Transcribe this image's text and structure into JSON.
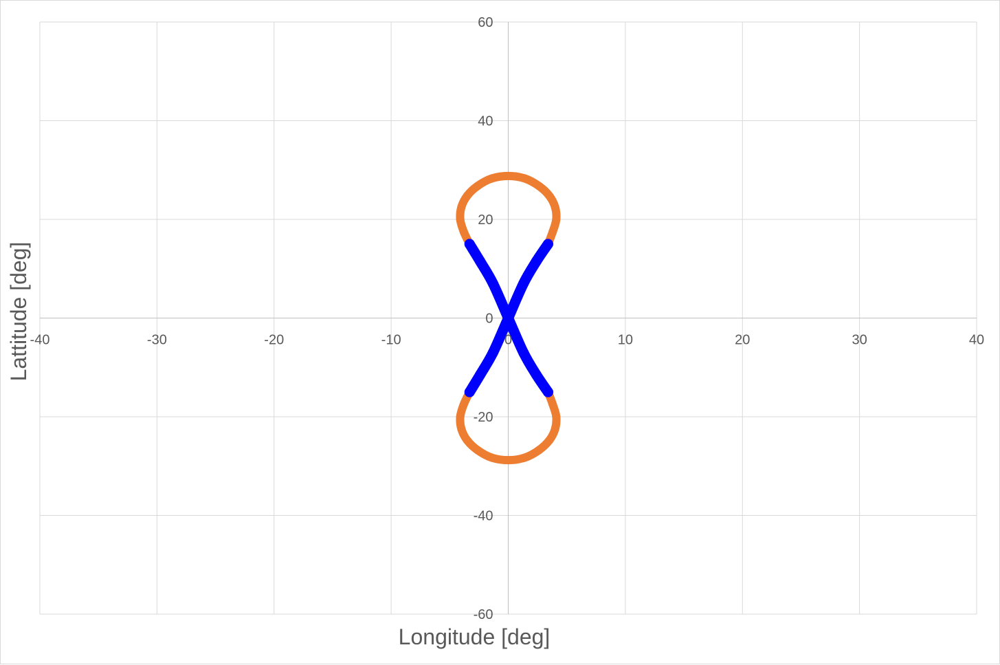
{
  "chart_data": {
    "type": "scatter",
    "title": "",
    "xlabel": "Longitude [deg]",
    "ylabel": "Lattitude [deg]",
    "xlim": [
      -40,
      40
    ],
    "ylim": [
      -60,
      60
    ],
    "x_ticks": [
      -40,
      -30,
      -20,
      -10,
      0,
      10,
      20,
      30,
      40
    ],
    "y_ticks": [
      -60,
      -40,
      -20,
      0,
      20,
      40,
      60
    ],
    "x_tick_labels": [
      "-40",
      "-30",
      "-20",
      "-10",
      "0",
      "10",
      "20",
      "30",
      "40"
    ],
    "y_tick_labels": [
      "-60",
      "-40",
      "-20",
      "0",
      "20",
      "40",
      "60"
    ],
    "grid": true,
    "legend": "none",
    "series": [
      {
        "color": "#ed7d31",
        "segments": [
          [
            [
              -3.3,
              15.0
            ],
            [
              -3.8,
              17.5
            ],
            [
              -4.1,
              20.0
            ],
            [
              -4.0,
              22.5
            ],
            [
              -3.5,
              24.8
            ],
            [
              -2.6,
              26.8
            ],
            [
              -1.4,
              28.3
            ],
            [
              0.0,
              28.8
            ],
            [
              1.4,
              28.3
            ],
            [
              2.6,
              26.8
            ],
            [
              3.5,
              24.8
            ],
            [
              4.0,
              22.5
            ],
            [
              4.1,
              20.0
            ],
            [
              3.8,
              17.5
            ],
            [
              3.4,
              15.0
            ]
          ],
          [
            [
              -3.3,
              -15.0
            ],
            [
              -3.8,
              -17.5
            ],
            [
              -4.1,
              -20.0
            ],
            [
              -4.0,
              -22.5
            ],
            [
              -3.5,
              -24.8
            ],
            [
              -2.6,
              -26.8
            ],
            [
              -1.4,
              -28.3
            ],
            [
              0.0,
              -28.8
            ],
            [
              1.4,
              -28.3
            ],
            [
              2.6,
              -26.8
            ],
            [
              3.5,
              -24.8
            ],
            [
              4.0,
              -22.5
            ],
            [
              4.1,
              -20.0
            ],
            [
              3.8,
              -17.5
            ],
            [
              3.4,
              -15.0
            ]
          ]
        ]
      },
      {
        "color": "#0000ff",
        "segments": [
          [
            [
              -3.3,
              15.0
            ],
            [
              -2.4,
              11.5
            ],
            [
              -1.3,
              7.0
            ],
            [
              0.0,
              0.0
            ],
            [
              1.3,
              -7.0
            ],
            [
              2.4,
              -11.5
            ],
            [
              3.4,
              -15.0
            ]
          ],
          [
            [
              3.4,
              15.0
            ],
            [
              2.4,
              11.5
            ],
            [
              1.3,
              7.0
            ],
            [
              0.0,
              0.0
            ],
            [
              -1.3,
              -7.0
            ],
            [
              -2.4,
              -11.5
            ],
            [
              -3.3,
              -15.0
            ]
          ]
        ]
      }
    ]
  }
}
